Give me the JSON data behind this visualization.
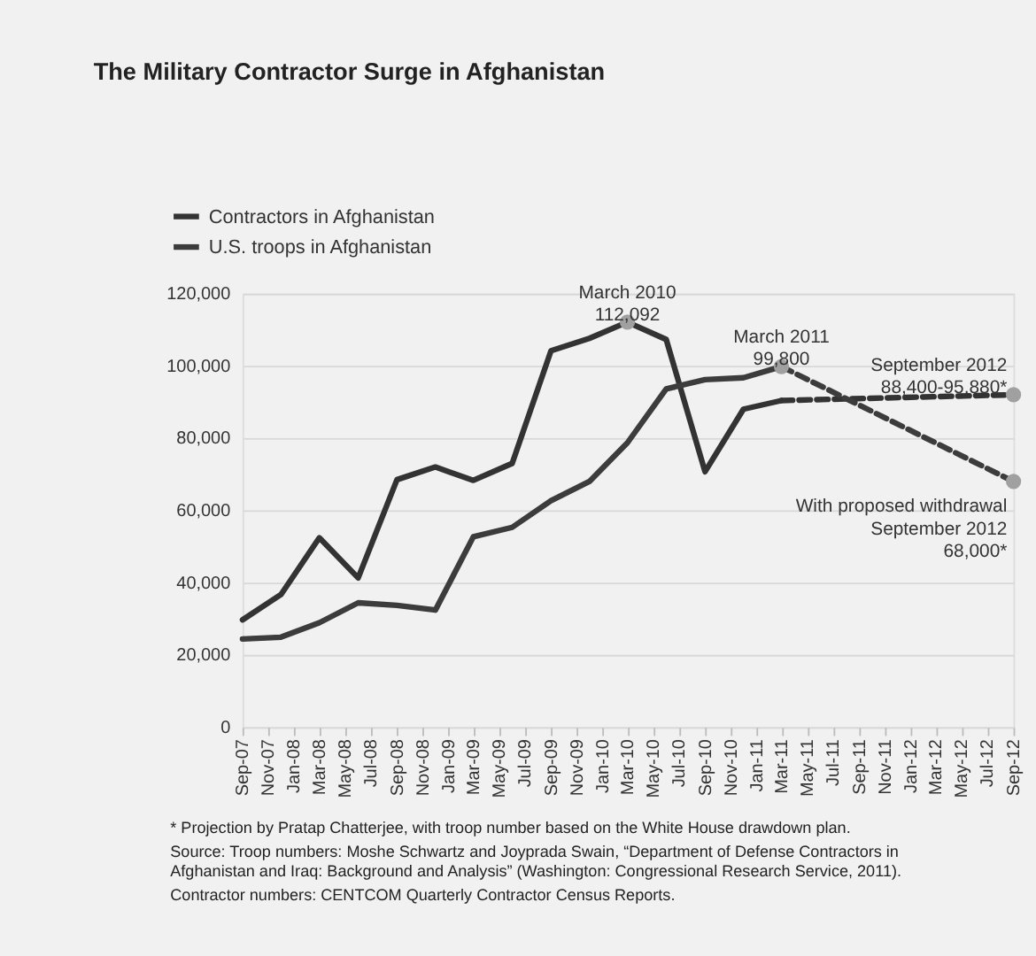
{
  "chart_data": {
    "type": "line",
    "title": "The Military Contractor Surge in Afghanistan",
    "x": [
      "2007-09",
      "2007-12",
      "2008-03",
      "2008-06",
      "2008-09",
      "2008-12",
      "2009-03",
      "2009-06",
      "2009-09",
      "2009-12",
      "2010-03",
      "2010-06",
      "2010-09",
      "2010-12",
      "2011-03"
    ],
    "series": [
      {
        "name": "Contractors in Afghanistan",
        "color": "#333333",
        "values": [
          29700,
          36700,
          52400,
          41300,
          68500,
          72000,
          68300,
          73000,
          104200,
          107600,
          112092,
          107300,
          70700,
          88000,
          90400
        ]
      },
      {
        "name": "U.S. troops in Afghanistan",
        "color": "#3c3c3c",
        "values": [
          24400,
          24900,
          28900,
          34400,
          33700,
          32400,
          52700,
          55300,
          62700,
          68000,
          78700,
          93600,
          96200,
          96700,
          99800
        ]
      },
      {
        "color": "#333333",
        "line_style": "dashed",
        "x": [
          "2011-03",
          "2012-09"
        ],
        "values": [
          90400,
          92000
        ]
      },
      {
        "color": "#3c3c3c",
        "line_style": "dashed",
        "x": [
          "2011-03",
          "2012-09"
        ],
        "values": [
          99800,
          68000
        ]
      }
    ],
    "xlim": [
      "2007-09",
      "2012-09"
    ],
    "xticks": [
      {
        "value": "2007-09",
        "label": "Sep-07"
      },
      {
        "value": "2007-11",
        "label": "Nov-07"
      },
      {
        "value": "2008-01",
        "label": "Jan-08"
      },
      {
        "value": "2008-03",
        "label": "Mar-08"
      },
      {
        "value": "2008-05",
        "label": "May-08"
      },
      {
        "value": "2008-07",
        "label": "Jul-08"
      },
      {
        "value": "2008-09",
        "label": "Sep-08"
      },
      {
        "value": "2008-11",
        "label": "Nov-08"
      },
      {
        "value": "2009-01",
        "label": "Jan-09"
      },
      {
        "value": "2009-03",
        "label": "Mar-09"
      },
      {
        "value": "2009-05",
        "label": "May-09"
      },
      {
        "value": "2009-07",
        "label": "Jul-09"
      },
      {
        "value": "2009-09",
        "label": "Sep-09"
      },
      {
        "value": "2009-11",
        "label": "Nov-09"
      },
      {
        "value": "2010-01",
        "label": "Jan-10"
      },
      {
        "value": "2010-03",
        "label": "Mar-10"
      },
      {
        "value": "2010-05",
        "label": "May-10"
      },
      {
        "value": "2010-07",
        "label": "Jul-10"
      },
      {
        "value": "2010-09",
        "label": "Sep-10"
      },
      {
        "value": "2010-11",
        "label": "Nov-10"
      },
      {
        "value": "2011-01",
        "label": "Jan-11"
      },
      {
        "value": "2011-03",
        "label": "Mar-11"
      },
      {
        "value": "2011-05",
        "label": "May-11"
      },
      {
        "value": "2011-07",
        "label": "Jul-11"
      },
      {
        "value": "2011-09",
        "label": "Sep-11"
      },
      {
        "value": "2011-11",
        "label": "Nov-11"
      },
      {
        "value": "2012-01",
        "label": "Jan-12"
      },
      {
        "value": "2012-03",
        "label": "Mar-12"
      },
      {
        "value": "2012-05",
        "label": "May-12"
      },
      {
        "value": "2012-07",
        "label": "Jul-12"
      },
      {
        "value": "2012-09",
        "label": "Sep-12"
      }
    ],
    "ylim": [
      0,
      120000
    ],
    "yticks": [
      {
        "value": 0,
        "label": "0"
      },
      {
        "value": 20000,
        "label": "20,000"
      },
      {
        "value": 40000,
        "label": "40,000"
      },
      {
        "value": 60000,
        "label": "60,000"
      },
      {
        "value": 80000,
        "label": "80,000"
      },
      {
        "value": 100000,
        "label": "100,000"
      },
      {
        "value": 120000,
        "label": "120,000"
      }
    ],
    "grid": "y",
    "legend": "top left",
    "line_style": "solid",
    "annotations": [
      {
        "text": "March 2010\n112,092",
        "x": "2010-03",
        "y": 112092
      },
      {
        "text": "March 2011\n99,800",
        "x": "2011-03",
        "y": 99800
      },
      {
        "text": "September 2012\n88,400-95,880*",
        "x": "2012-09",
        "y": 92000
      },
      {
        "text": "With proposed withdrawal\nSeptember 2012\n68,000*",
        "x": "2012-09",
        "y": 68000
      },
      "* Projection by Pratap Chatterjee, with troop number based on the White House drawdown plan.",
      "Source: Troop numbers: Moshe Schwartz and Joyprada Swain, “Department of Defense Contractors in Afghanistan and Iraq: Background and Analysis” (Washington: Congressional Research Service, 2011).",
      "Contractor numbers: CENTCOM Quarterly Contractor Census Reports."
    ]
  }
}
